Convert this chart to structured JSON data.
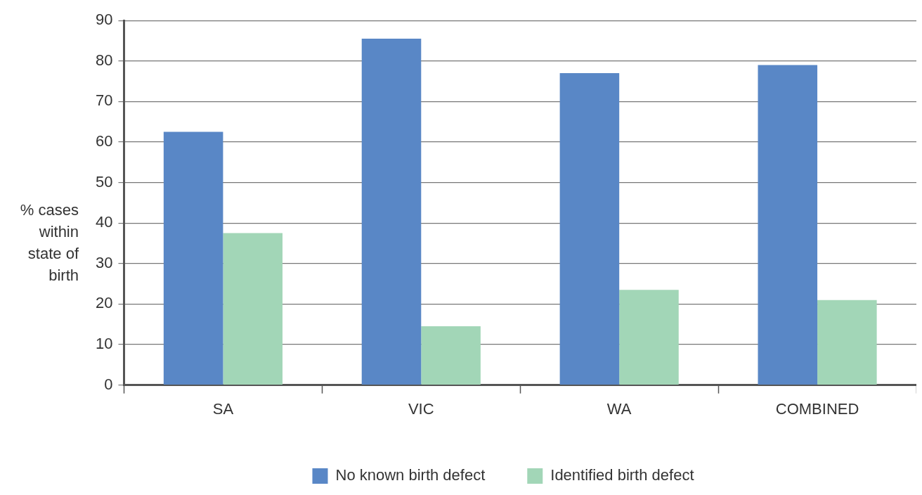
{
  "chart_data": {
    "type": "bar",
    "ylabel": "% cases within state of birth",
    "categories": [
      "SA",
      "VIC",
      "WA",
      "COMBINED"
    ],
    "series": [
      {
        "name": "No known birth defect",
        "color": "#5987c6",
        "values": [
          62.5,
          85.5,
          77,
          79
        ]
      },
      {
        "name": "Identified birth defect",
        "color": "#a2d6b7",
        "values": [
          37.5,
          14.5,
          23.5,
          21
        ]
      }
    ],
    "ylim": [
      0,
      90
    ],
    "yticks": [
      0,
      10,
      20,
      30,
      40,
      50,
      60,
      70,
      80,
      90
    ],
    "grid": "y",
    "legend": "bottom"
  }
}
